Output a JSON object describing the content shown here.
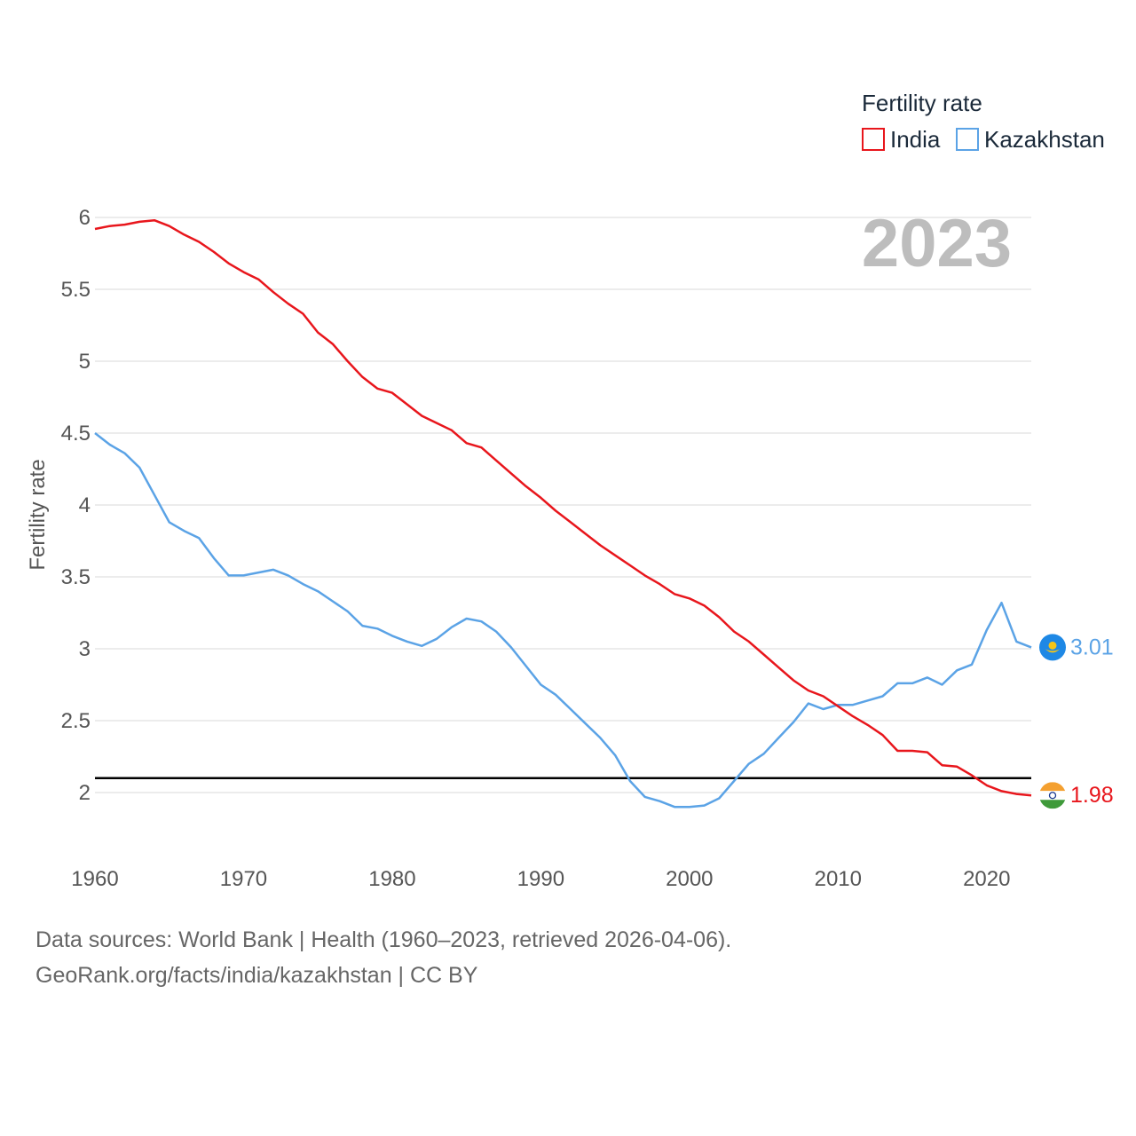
{
  "chart_data": {
    "type": "line",
    "title": "Fertility rate",
    "ylabel": "Fertility rate",
    "xlabel": "",
    "year_label": "2023",
    "xlim": [
      1960,
      2023
    ],
    "ylim": [
      1.7,
      6.2
    ],
    "yticks": [
      2,
      2.5,
      3,
      3.5,
      4,
      4.5,
      5,
      5.5,
      6
    ],
    "ytick_labels": [
      "2",
      "2.5",
      "3",
      "3.5",
      "4",
      "4.5",
      "5",
      "5.5",
      "6"
    ],
    "xticks": [
      1960,
      1970,
      1980,
      1990,
      2000,
      2010,
      2020
    ],
    "xtick_labels": [
      "1960",
      "1970",
      "1980",
      "1990",
      "2000",
      "2010",
      "2020"
    ],
    "reference_line": 2.1,
    "x": [
      1960,
      1961,
      1962,
      1963,
      1964,
      1965,
      1966,
      1967,
      1968,
      1969,
      1970,
      1971,
      1972,
      1973,
      1974,
      1975,
      1976,
      1977,
      1978,
      1979,
      1980,
      1981,
      1982,
      1983,
      1984,
      1985,
      1986,
      1987,
      1988,
      1989,
      1990,
      1991,
      1992,
      1993,
      1994,
      1995,
      1996,
      1997,
      1998,
      1999,
      2000,
      2001,
      2002,
      2003,
      2004,
      2005,
      2006,
      2007,
      2008,
      2009,
      2010,
      2011,
      2012,
      2013,
      2014,
      2015,
      2016,
      2017,
      2018,
      2019,
      2020,
      2021,
      2022,
      2023
    ],
    "series": [
      {
        "name": "India",
        "color": "#e8161c",
        "end_label": "1.98",
        "values": [
          5.92,
          5.94,
          5.95,
          5.97,
          5.98,
          5.94,
          5.88,
          5.83,
          5.76,
          5.68,
          5.62,
          5.57,
          5.48,
          5.4,
          5.33,
          5.2,
          5.12,
          5.0,
          4.89,
          4.81,
          4.78,
          4.7,
          4.62,
          4.57,
          4.52,
          4.43,
          4.4,
          4.31,
          4.22,
          4.13,
          4.05,
          3.96,
          3.88,
          3.8,
          3.72,
          3.65,
          3.58,
          3.51,
          3.45,
          3.38,
          3.35,
          3.3,
          3.22,
          3.12,
          3.05,
          2.96,
          2.87,
          2.78,
          2.71,
          2.67,
          2.6,
          2.53,
          2.47,
          2.4,
          2.29,
          2.29,
          2.28,
          2.19,
          2.18,
          2.12,
          2.05,
          2.01,
          1.99,
          1.98
        ]
      },
      {
        "name": "Kazakhstan",
        "color": "#5ba3e6",
        "end_label": "3.01",
        "values": [
          4.5,
          4.42,
          4.36,
          4.26,
          4.07,
          3.88,
          3.82,
          3.77,
          3.63,
          3.51,
          3.51,
          3.53,
          3.55,
          3.51,
          3.45,
          3.4,
          3.33,
          3.26,
          3.16,
          3.14,
          3.09,
          3.05,
          3.02,
          3.07,
          3.15,
          3.21,
          3.19,
          3.12,
          3.01,
          2.88,
          2.75,
          2.68,
          2.58,
          2.48,
          2.38,
          2.26,
          2.08,
          1.97,
          1.94,
          1.9,
          1.9,
          1.91,
          1.96,
          2.08,
          2.2,
          2.27,
          2.38,
          2.49,
          2.62,
          2.58,
          2.61,
          2.61,
          2.64,
          2.67,
          2.76,
          2.76,
          2.8,
          2.75,
          2.85,
          2.89,
          3.13,
          3.32,
          3.05,
          3.01
        ]
      }
    ]
  },
  "source": {
    "line1": "Data sources: World Bank | Health (1960–2023, retrieved 2026-04-06).",
    "line2": "GeoRank.org/facts/india/kazakhstan | CC BY"
  }
}
